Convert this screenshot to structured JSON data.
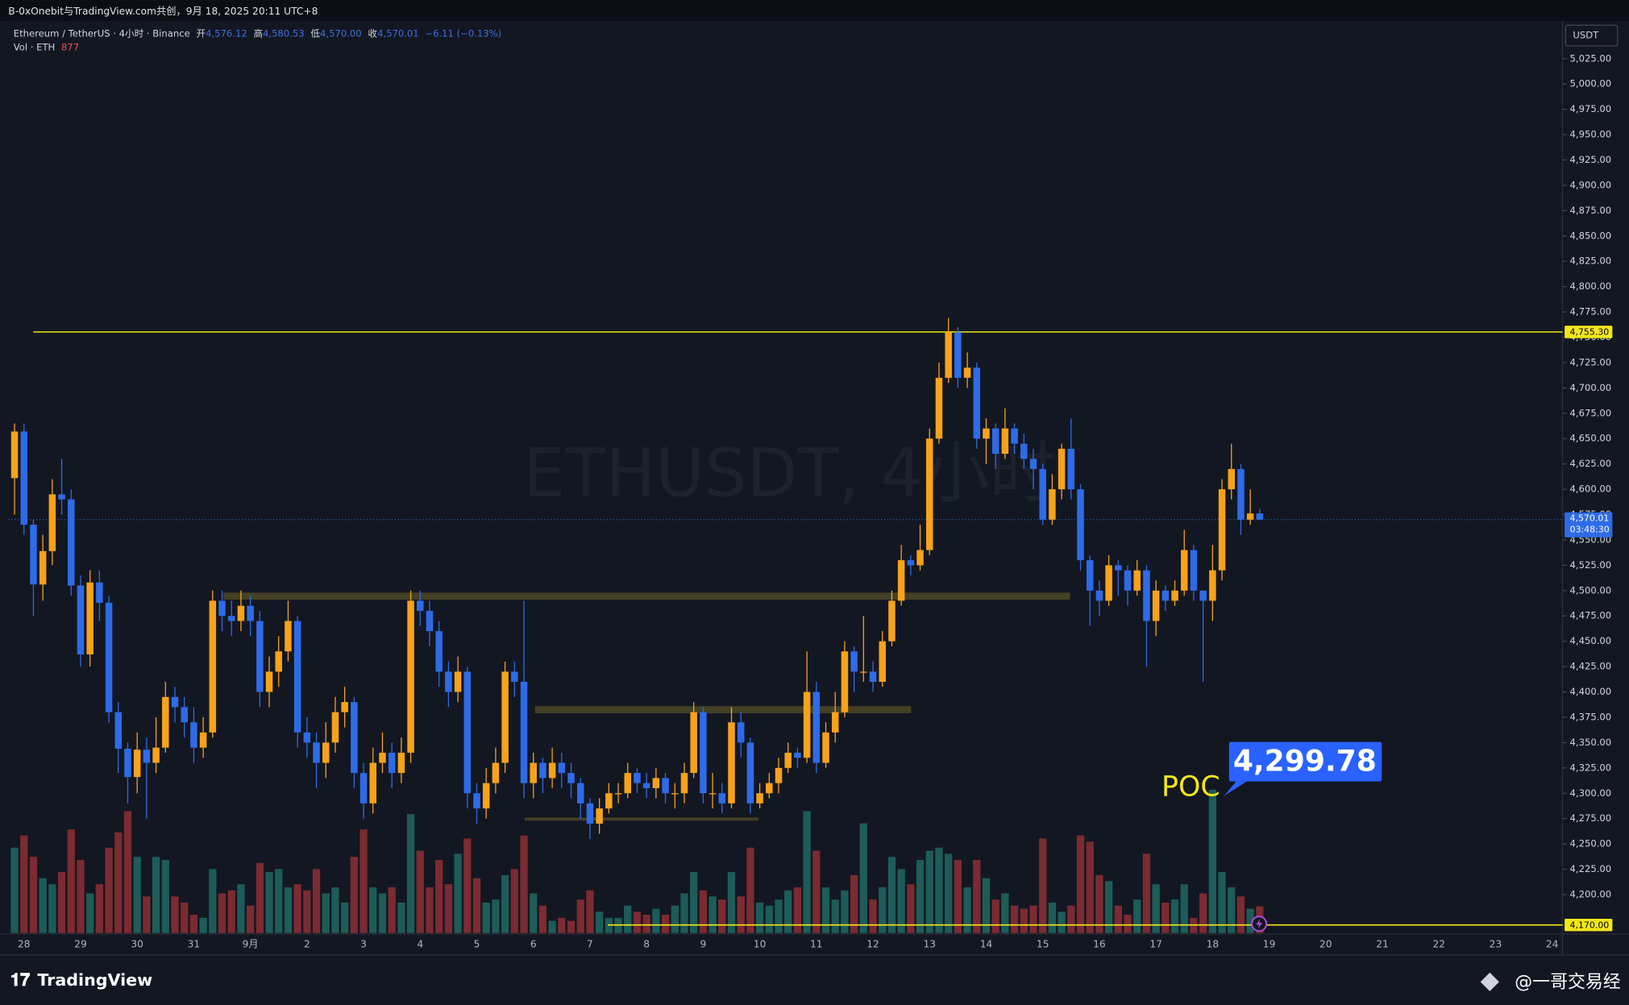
{
  "header": {
    "top_line": "B-0xOnebit与TradingView.com共创，9月 18, 2025 20:11 UTC+8",
    "symbol": "Ethereum / TetherUS · 4小时 · Binance",
    "o_label": "开",
    "o": "4,576.12",
    "h_label": "高",
    "h": "4,580.53",
    "l_label": "低",
    "l": "4,570.00",
    "c_label": "收",
    "c": "4,570.01",
    "change": "−6.11 (−0.13%)",
    "vol_label": "Vol · ETH",
    "currency": "USDT",
    "watermark": "ETHUSDT, 4小时"
  },
  "footer": {
    "brand": "TradingView",
    "author": "@一哥交易经"
  },
  "chart_data": {
    "type": "candlestick",
    "up_color": "#f7a21b",
    "down_color": "#2e6be6",
    "volume_up_color": "#1d5c58",
    "volume_down_color": "#7b2b31",
    "level_color": "#f2e61a",
    "zone_color": "#4a4526",
    "grid": false,
    "categories": [
      null,
      "28",
      null,
      null,
      null,
      null,
      null,
      "29",
      null,
      null,
      null,
      null,
      null,
      "30",
      null,
      null,
      null,
      null,
      null,
      "31",
      null,
      null,
      null,
      null,
      null,
      "9月",
      null,
      null,
      null,
      null,
      null,
      "2",
      null,
      null,
      null,
      null,
      null,
      "3",
      null,
      null,
      null,
      null,
      null,
      "4",
      null,
      null,
      null,
      null,
      null,
      "5",
      null,
      null,
      null,
      null,
      null,
      "6",
      null,
      null,
      null,
      null,
      null,
      "7",
      null,
      null,
      null,
      null,
      null,
      "8",
      null,
      null,
      null,
      null,
      null,
      "9",
      null,
      null,
      null,
      null,
      null,
      "10",
      null,
      null,
      null,
      null,
      null,
      "11",
      null,
      null,
      null,
      null,
      null,
      "12",
      null,
      null,
      null,
      null,
      null,
      "13",
      null,
      null,
      null,
      null,
      null,
      "14",
      null,
      null,
      null,
      null,
      null,
      "15",
      null,
      null,
      null,
      null,
      null,
      "16",
      null,
      null,
      null,
      null,
      null,
      "17",
      null,
      null,
      null,
      null,
      null,
      "18",
      null,
      null,
      null,
      null,
      null,
      "19",
      null,
      null,
      null,
      null,
      null,
      "20",
      null,
      null,
      null,
      null,
      null,
      "21",
      null,
      null,
      null,
      null,
      null,
      "22",
      null,
      null,
      null,
      null,
      null,
      "23",
      null,
      null,
      null,
      null,
      null,
      "24"
    ],
    "open": [
      4611,
      4657,
      4565,
      4506,
      4539,
      4595,
      4590,
      4505,
      4437,
      4508,
      4488,
      4380,
      4344,
      4316,
      4343,
      4330,
      4345,
      4395,
      4385,
      4370,
      4345,
      4360,
      4490,
      4475,
      4470,
      4485,
      4470,
      4400,
      4420,
      4440,
      4470,
      4360,
      4350,
      4330,
      4350,
      4380,
      4390,
      4320,
      4290,
      4330,
      4340,
      4320,
      4340,
      4490,
      4480,
      4460,
      4420,
      4400,
      4420,
      4300,
      4285,
      4310,
      4330,
      4420,
      4410,
      4310,
      4330,
      4315,
      4330,
      4320,
      4310,
      4290,
      4270,
      4285,
      4300,
      4300,
      4320,
      4310,
      4305,
      4315,
      4300,
      4300,
      4320,
      4380,
      4300,
      4300,
      4290,
      4370,
      4350,
      4290,
      4300,
      4310,
      4325,
      4340,
      4335,
      4400,
      4330,
      4360,
      4380,
      4440,
      4420,
      4420,
      4410,
      4450,
      4490,
      4530,
      4525,
      4540,
      4650,
      4710,
      4755,
      4710,
      4720,
      4650,
      4660,
      4635,
      4660,
      4645,
      4630,
      4620,
      4570,
      4600,
      4640,
      4600,
      4530,
      4500,
      4490,
      4525,
      4520,
      4500,
      4520,
      4470,
      4500,
      4490,
      4500,
      4540,
      4500,
      4490,
      4520,
      4600,
      4620,
      4570,
      4576.12,
      null,
      null,
      null,
      null,
      null,
      null,
      null,
      null,
      null,
      null,
      null,
      null,
      null,
      null,
      null,
      null,
      null,
      null,
      null,
      null,
      null,
      null,
      null,
      null,
      null,
      null,
      null,
      null,
      null,
      null,
      null
    ],
    "high": [
      4665,
      4665,
      4570,
      4555,
      4610,
      4630,
      4600,
      4515,
      4520,
      4520,
      4495,
      4390,
      4350,
      4360,
      4355,
      4375,
      4410,
      4405,
      4395,
      4385,
      4375,
      4500,
      4500,
      4490,
      4500,
      4495,
      4480,
      4435,
      4455,
      4490,
      4475,
      4375,
      4360,
      4370,
      4395,
      4405,
      4395,
      4330,
      4345,
      4360,
      4350,
      4355,
      4500,
      4500,
      4490,
      4470,
      4430,
      4435,
      4425,
      4310,
      4325,
      4345,
      4430,
      4430,
      4490,
      4340,
      4335,
      4345,
      4340,
      4330,
      4315,
      4295,
      4295,
      4310,
      4310,
      4330,
      4325,
      4320,
      4325,
      4320,
      4310,
      4330,
      4390,
      4385,
      4320,
      4310,
      4385,
      4380,
      4355,
      4310,
      4320,
      4335,
      4350,
      4345,
      4440,
      4410,
      4370,
      4400,
      4450,
      4445,
      4475,
      4430,
      4460,
      4500,
      4545,
      4535,
      4565,
      4660,
      4725,
      4769,
      4760,
      4735,
      4725,
      4670,
      4665,
      4680,
      4665,
      4655,
      4640,
      4625,
      4615,
      4645,
      4670,
      4605,
      4535,
      4510,
      4535,
      4530,
      4525,
      4530,
      4525,
      4510,
      4505,
      4510,
      4560,
      4545,
      4500,
      4545,
      4610,
      4645,
      4625,
      4600,
      4580.53,
      null,
      null,
      null,
      null,
      null,
      null,
      null,
      null,
      null,
      null,
      null,
      null,
      null,
      null,
      null,
      null,
      null,
      null,
      null,
      null,
      null,
      null,
      null,
      null,
      null,
      null,
      null,
      null,
      null,
      null,
      null
    ],
    "low": [
      4575,
      4555,
      4475,
      4490,
      4525,
      4575,
      4495,
      4425,
      4425,
      4470,
      4370,
      4320,
      4290,
      4300,
      4275,
      4320,
      4340,
      4370,
      4355,
      4330,
      4335,
      4355,
      4460,
      4455,
      4460,
      4455,
      4385,
      4385,
      4405,
      4430,
      4345,
      4335,
      4305,
      4315,
      4340,
      4365,
      4305,
      4275,
      4280,
      4320,
      4305,
      4310,
      4330,
      4465,
      4445,
      4405,
      4385,
      4390,
      4285,
      4270,
      4275,
      4300,
      4320,
      4395,
      4295,
      4295,
      4300,
      4305,
      4305,
      4295,
      4275,
      4255,
      4260,
      4280,
      4290,
      4295,
      4300,
      4295,
      4295,
      4290,
      4285,
      4290,
      4315,
      4290,
      4285,
      4280,
      4285,
      4335,
      4280,
      4285,
      4295,
      4300,
      4320,
      4325,
      4330,
      4320,
      4325,
      4350,
      4375,
      4400,
      4410,
      4400,
      4405,
      4445,
      4485,
      4515,
      4520,
      4535,
      4645,
      4705,
      4700,
      4700,
      4640,
      4625,
      4620,
      4630,
      4635,
      4620,
      4600,
      4565,
      4565,
      4590,
      4590,
      4520,
      4465,
      4475,
      4485,
      4495,
      4485,
      4495,
      4425,
      4455,
      4480,
      4485,
      4495,
      4490,
      4410,
      4470,
      4510,
      4590,
      4555,
      4565,
      4570.0,
      null,
      null,
      null,
      null,
      null,
      null,
      null,
      null,
      null,
      null,
      null,
      null,
      null,
      null,
      null,
      null,
      null,
      null,
      null,
      null,
      null,
      null,
      null,
      null,
      null,
      null,
      null,
      null,
      null,
      null,
      null
    ],
    "close": [
      4657,
      4565,
      4506,
      4539,
      4595,
      4590,
      4505,
      4437,
      4508,
      4488,
      4380,
      4344,
      4316,
      4343,
      4330,
      4345,
      4395,
      4385,
      4370,
      4345,
      4360,
      4490,
      4475,
      4470,
      4485,
      4470,
      4400,
      4420,
      4440,
      4470,
      4360,
      4350,
      4330,
      4350,
      4380,
      4390,
      4320,
      4290,
      4330,
      4340,
      4320,
      4340,
      4490,
      4480,
      4460,
      4420,
      4400,
      4420,
      4300,
      4285,
      4310,
      4330,
      4420,
      4410,
      4310,
      4330,
      4315,
      4330,
      4320,
      4310,
      4290,
      4270,
      4285,
      4300,
      4300,
      4320,
      4310,
      4305,
      4315,
      4300,
      4300,
      4320,
      4380,
      4300,
      4300,
      4290,
      4370,
      4350,
      4290,
      4300,
      4310,
      4325,
      4340,
      4335,
      4400,
      4330,
      4360,
      4380,
      4440,
      4420,
      4420,
      4410,
      4450,
      4490,
      4530,
      4525,
      4540,
      4650,
      4710,
      4755,
      4710,
      4720,
      4650,
      4660,
      4635,
      4660,
      4645,
      4630,
      4620,
      4570,
      4600,
      4640,
      4600,
      4530,
      4500,
      4490,
      4525,
      4520,
      4500,
      4520,
      4470,
      4500,
      4490,
      4500,
      4540,
      4500,
      4490,
      4520,
      4600,
      4620,
      4570,
      4576.12,
      4570.01,
      null,
      null,
      null,
      null,
      null,
      null,
      null,
      null,
      null,
      null,
      null,
      null,
      null,
      null,
      null,
      null,
      null,
      null,
      null,
      null,
      null,
      null,
      null,
      null,
      null,
      null,
      null,
      null,
      null,
      null,
      null
    ],
    "volume": [
      2800,
      3200,
      2500,
      1800,
      1600,
      2000,
      3400,
      2400,
      1300,
      1600,
      2800,
      3300,
      4000,
      2500,
      1200,
      2500,
      2400,
      1200,
      1000,
      600,
      500,
      2100,
      1300,
      1400,
      1600,
      900,
      2300,
      2000,
      2100,
      1500,
      1600,
      1400,
      2100,
      1300,
      1500,
      1000,
      2500,
      3400,
      1500,
      1300,
      1500,
      1000,
      3900,
      2700,
      1500,
      2400,
      1600,
      2600,
      3100,
      1800,
      1000,
      1100,
      1900,
      2100,
      3200,
      1300,
      900,
      400,
      500,
      400,
      1100,
      1400,
      700,
      500,
      500,
      900,
      700,
      600,
      800,
      600,
      900,
      1300,
      2000,
      1400,
      1200,
      1100,
      2000,
      1200,
      2800,
      1000,
      900,
      1100,
      1400,
      1500,
      4000,
      2700,
      1500,
      1100,
      1400,
      1900,
      3600,
      1100,
      1500,
      2500,
      2100,
      1600,
      2400,
      2700,
      2800,
      2600,
      2400,
      1500,
      2400,
      1800,
      1100,
      1300,
      900,
      800,
      900,
      3100,
      1000,
      700,
      900,
      3200,
      3000,
      1900,
      1700,
      900,
      600,
      1100,
      2600,
      1600,
      1000,
      1100,
      1600,
      500,
      1300,
      4700,
      2000,
      1500,
      1200,
      800,
      877,
      null,
      null,
      null,
      null,
      null,
      null,
      null,
      null,
      null,
      null,
      null,
      null,
      null,
      null,
      null,
      null,
      null,
      null,
      null,
      null,
      null,
      null,
      null,
      null,
      null,
      null,
      null,
      null,
      null,
      null,
      null
    ],
    "ylim": [
      4162,
      5057
    ],
    "yticks": [
      {
        "value": 4200,
        "label": "4,200.00"
      },
      {
        "value": 4225,
        "label": "4,225.00"
      },
      {
        "value": 4250,
        "label": "4,250.00"
      },
      {
        "value": 4275,
        "label": "4,275.00"
      },
      {
        "value": 4300,
        "label": "4,300.00"
      },
      {
        "value": 4325,
        "label": "4,325.00"
      },
      {
        "value": 4350,
        "label": "4,350.00"
      },
      {
        "value": 4375,
        "label": "4,375.00"
      },
      {
        "value": 4400,
        "label": "4,400.00"
      },
      {
        "value": 4425,
        "label": "4,425.00"
      },
      {
        "value": 4450,
        "label": "4,450.00"
      },
      {
        "value": 4475,
        "label": "4,475.00"
      },
      {
        "value": 4500,
        "label": "4,500.00"
      },
      {
        "value": 4525,
        "label": "4,525.00"
      },
      {
        "value": 4550,
        "label": "4,550.00"
      },
      {
        "value": 4575,
        "label": "4,575.00"
      },
      {
        "value": 4600,
        "label": "4,600.00"
      },
      {
        "value": 4625,
        "label": "4,625.00"
      },
      {
        "value": 4650,
        "label": "4,650.00"
      },
      {
        "value": 4675,
        "label": "4,675.00"
      },
      {
        "value": 4700,
        "label": "4,700.00"
      },
      {
        "value": 4725,
        "label": "4,725.00"
      },
      {
        "value": 4750,
        "label": "4,750.00"
      },
      {
        "value": 4775,
        "label": "4,775.00"
      },
      {
        "value": 4800,
        "label": "4,800.00"
      },
      {
        "value": 4825,
        "label": "4,825.00"
      },
      {
        "value": 4850,
        "label": "4,850.00"
      },
      {
        "value": 4875,
        "label": "4,875.00"
      },
      {
        "value": 4900,
        "label": "4,900.00"
      },
      {
        "value": 4925,
        "label": "4,925.00"
      },
      {
        "value": 4950,
        "label": "4,950.00"
      },
      {
        "value": 4975,
        "label": "4,975.00"
      },
      {
        "value": 5000,
        "label": "5,000.00"
      },
      {
        "value": 5025,
        "label": "5,025.00"
      }
    ],
    "levels": [
      {
        "value": 4755.3,
        "label": "4,755.30"
      },
      {
        "value": 4170,
        "label": "4,170.00"
      }
    ],
    "zones": [
      {
        "low": 4491,
        "high": 4498
      },
      {
        "low": 4379,
        "high": 4386
      },
      {
        "low": 4273,
        "high": 4276
      }
    ],
    "last_price": {
      "value": 4570.01,
      "label": "4,570.01"
    },
    "countdown": "03:48:30",
    "poc_label": "POC",
    "poc": {
      "value": 4299.78,
      "label": "4,299.78"
    }
  }
}
